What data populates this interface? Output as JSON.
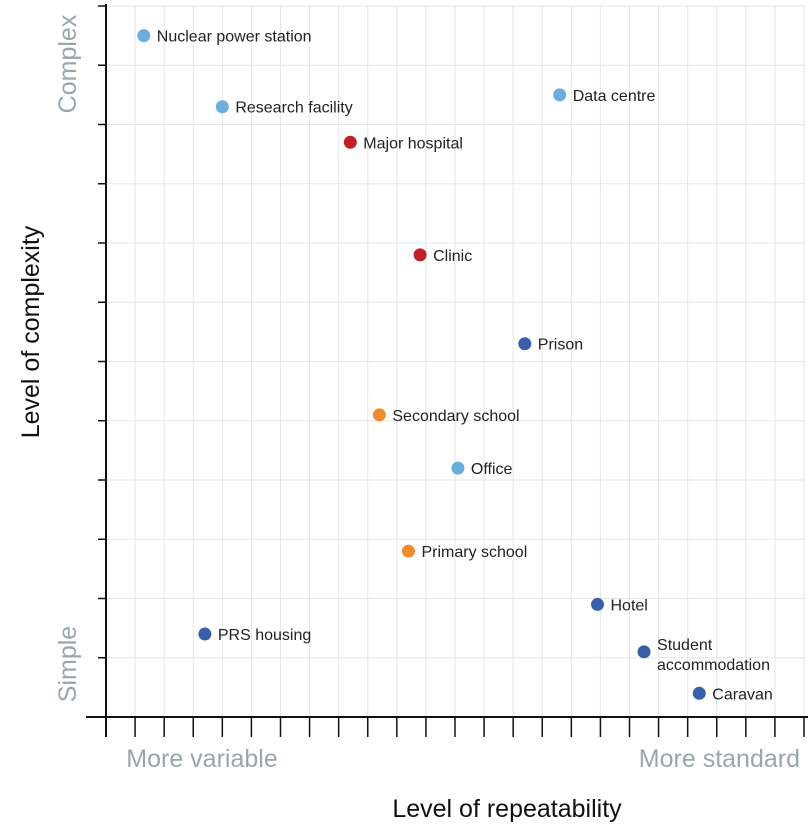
{
  "chart_data": {
    "type": "scatter",
    "title": "",
    "xlabel": "Level of repeatability",
    "ylabel": "Level of complexity",
    "x_end_labels": {
      "low": "More variable",
      "high": "More standard"
    },
    "y_end_labels": {
      "low": "Simple",
      "high": "Complex"
    },
    "xlim": [
      0,
      24
    ],
    "ylim": [
      0,
      12
    ],
    "grid": true,
    "legend": "none",
    "colors": {
      "light_blue": "#6aaee0",
      "red": "#c0202a",
      "orange": "#f28a2e",
      "dark_blue": "#3a5ea8"
    },
    "points": [
      {
        "label": "Nuclear power station",
        "x": 1.3,
        "y": 11.5,
        "color": "light_blue"
      },
      {
        "label": "Research facility",
        "x": 4.0,
        "y": 10.3,
        "color": "light_blue"
      },
      {
        "label": "Data centre",
        "x": 15.6,
        "y": 10.5,
        "color": "light_blue"
      },
      {
        "label": "Major hospital",
        "x": 8.4,
        "y": 9.7,
        "color": "red"
      },
      {
        "label": "Clinic",
        "x": 10.8,
        "y": 7.8,
        "color": "red"
      },
      {
        "label": "Prison",
        "x": 14.4,
        "y": 6.3,
        "color": "dark_blue"
      },
      {
        "label": "Secondary school",
        "x": 9.4,
        "y": 5.1,
        "color": "orange"
      },
      {
        "label": "Office",
        "x": 12.1,
        "y": 4.2,
        "color": "light_blue"
      },
      {
        "label": "Primary school",
        "x": 10.4,
        "y": 2.8,
        "color": "orange"
      },
      {
        "label": "Hotel",
        "x": 16.9,
        "y": 1.9,
        "color": "dark_blue"
      },
      {
        "label": "PRS housing",
        "x": 3.4,
        "y": 1.4,
        "color": "dark_blue"
      },
      {
        "label": "Student accommodation",
        "x": 18.5,
        "y": 1.1,
        "color": "dark_blue"
      },
      {
        "label": "Caravan",
        "x": 20.4,
        "y": 0.4,
        "color": "dark_blue"
      }
    ]
  }
}
